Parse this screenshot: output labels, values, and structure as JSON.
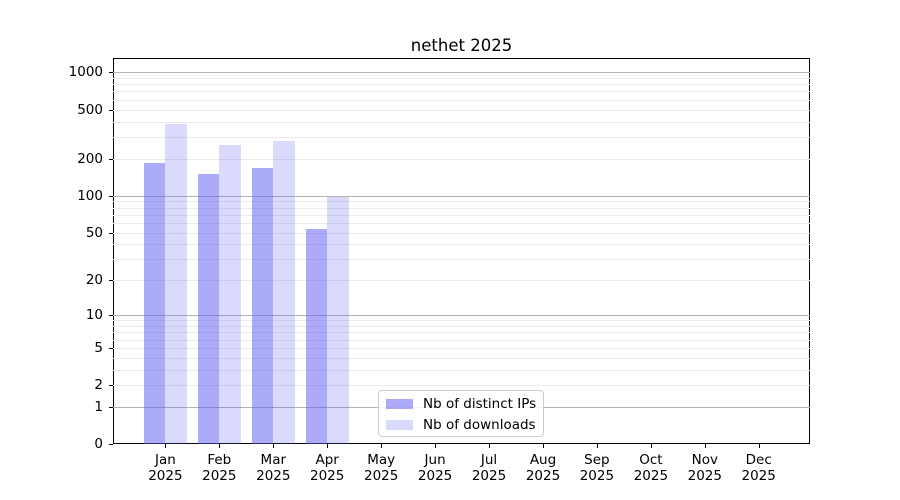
{
  "figure": {
    "title": "nethet 2025",
    "background_color": "#ffffff"
  },
  "chart_data": {
    "type": "bar",
    "title": "nethet 2025",
    "xlabel": "",
    "ylabel": "",
    "categories": [
      "Jan",
      "Feb",
      "Mar",
      "Apr",
      "May",
      "Jun",
      "Jul",
      "Aug",
      "Sep",
      "Oct",
      "Nov",
      "Dec"
    ],
    "category_year": "2025",
    "series": [
      {
        "name": "Nb of distinct IPs",
        "color": "rgba(88,88,242,0.5)",
        "values": [
          185,
          150,
          168,
          54,
          null,
          null,
          null,
          null,
          null,
          null,
          null,
          null
        ]
      },
      {
        "name": "Nb of downloads",
        "color": "rgba(88,88,242,0.22)",
        "values": [
          380,
          260,
          278,
          97,
          null,
          null,
          null,
          null,
          null,
          null,
          null,
          null
        ]
      }
    ],
    "yscale": "log10(1+y)",
    "ylim": [
      0,
      1290
    ],
    "y_ticks": [
      1000,
      500,
      200,
      100,
      50,
      20,
      10,
      5,
      2,
      1,
      0
    ],
    "grid": {
      "on": true,
      "major_lines_at": [
        1,
        10,
        100,
        1000
      ],
      "minor_lines": "2-9 per decade",
      "major_color": "#b3b3b3",
      "minor_color": "#ebebeb"
    },
    "legend": {
      "position": "lower center",
      "entries": [
        "Nb of distinct IPs",
        "Nb of downloads"
      ]
    }
  }
}
